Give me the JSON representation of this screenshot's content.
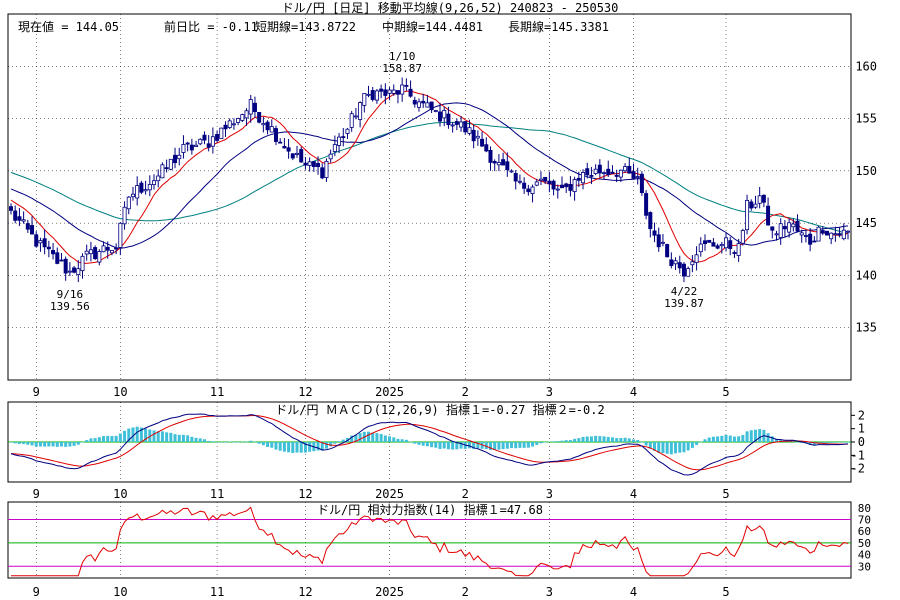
{
  "header": {
    "title": "ドル/円 [日足]  移動平均線(9,26,52)  240823 - 250530",
    "stats": [
      "現在値 = 144.05",
      "前日比 = -0.11",
      "短期線=143.8722",
      "中期線=144.4481",
      "長期線=145.3381"
    ]
  },
  "x_ticks": [
    {
      "label": "9",
      "idx": 6
    },
    {
      "label": "10",
      "idx": 26
    },
    {
      "label": "11",
      "idx": 49
    },
    {
      "label": "12",
      "idx": 70
    },
    {
      "label": "2025",
      "idx": 90
    },
    {
      "label": "2",
      "idx": 108
    },
    {
      "label": "3",
      "idx": 128
    },
    {
      "label": "4",
      "idx": 148
    },
    {
      "label": "5",
      "idx": 170
    }
  ],
  "colors": {
    "short_ma": "#e00000",
    "mid_ma": "#000080",
    "long_ma": "#008080",
    "macd_line": "#000080",
    "signal_line": "#e00000",
    "histogram": "#40c0d8",
    "rsi_line": "#e00000",
    "zero_line": "#00b000",
    "rsi_band": "#cc00cc",
    "rsi_mid": "#00b000",
    "up_candle": "#ffffff",
    "down_candle": "#000080"
  },
  "chart_data": [
    {
      "type": "candlestick",
      "title": "ドル/円 [日足]  移動平均線(9,26,52)  240823 - 250530",
      "y_ticks": [
        "160",
        "155",
        "150",
        "145",
        "140",
        "135"
      ],
      "ylim": [
        130,
        165
      ],
      "annotations": [
        {
          "label1": "9/16",
          "label2": "139.56",
          "idx": 14,
          "price": 139.56,
          "pos": "below"
        },
        {
          "label1": "1/10",
          "label2": "158.87",
          "idx": 93,
          "price": 158.87,
          "pos": "above"
        },
        {
          "label1": "4/22",
          "label2": "139.87",
          "idx": 160,
          "price": 139.87,
          "pos": "below"
        }
      ],
      "keypoints": [
        [
          0,
          146.0
        ],
        [
          7,
          142.8
        ],
        [
          14,
          140.3
        ],
        [
          18,
          141.8
        ],
        [
          22,
          142.5
        ],
        [
          25,
          142.8
        ],
        [
          28,
          147.6
        ],
        [
          35,
          149.5
        ],
        [
          41,
          152.0
        ],
        [
          47,
          152.8
        ],
        [
          52,
          154.5
        ],
        [
          57,
          156.2
        ],
        [
          62,
          154.0
        ],
        [
          66,
          152.0
        ],
        [
          70,
          150.5
        ],
        [
          74,
          150.0
        ],
        [
          77,
          152.5
        ],
        [
          80,
          154.0
        ],
        [
          83,
          156.5
        ],
        [
          86,
          157.5
        ],
        [
          90,
          157.3
        ],
        [
          93,
          157.8
        ],
        [
          97,
          156.5
        ],
        [
          101,
          155.5
        ],
        [
          104,
          155.0
        ],
        [
          108,
          154.0
        ],
        [
          112,
          152.5
        ],
        [
          116,
          150.5
        ],
        [
          121,
          148.5
        ],
        [
          126,
          149.0
        ],
        [
          131,
          147.8
        ],
        [
          135,
          149.5
        ],
        [
          140,
          150.0
        ],
        [
          145,
          150.0
        ],
        [
          149,
          149.0
        ],
        [
          152,
          144.5
        ],
        [
          156,
          142.0
        ],
        [
          160,
          140.5
        ],
        [
          163,
          142.5
        ],
        [
          167,
          143.0
        ],
        [
          170,
          143.0
        ],
        [
          173,
          142.5
        ],
        [
          175,
          146.5
        ],
        [
          178,
          147.5
        ],
        [
          181,
          144.0
        ],
        [
          185,
          145.0
        ],
        [
          188,
          143.8
        ],
        [
          190,
          143.3
        ],
        [
          193,
          144.7
        ],
        [
          195,
          144.05
        ]
      ],
      "series": [
        {
          "name": "短期線",
          "period": 9
        },
        {
          "name": "中期線",
          "period": 26
        },
        {
          "name": "長期線",
          "period": 52
        }
      ]
    },
    {
      "type": "line",
      "title": "ドル/円   ＭＡＣＤ(12,26,9) 指標１=-0.27   指標２=-0.2",
      "y_ticks": [
        "2",
        "1",
        "0",
        "-1",
        "-2"
      ],
      "ylim": [
        -3,
        3
      ]
    },
    {
      "type": "line",
      "title": "ドル/円   相対力指数(14) 指標１=47.68",
      "y_ticks": [
        "80",
        "70",
        "60",
        "50",
        "40",
        "30"
      ],
      "ylim": [
        20,
        85
      ],
      "bands": [
        70,
        50,
        30
      ]
    }
  ]
}
